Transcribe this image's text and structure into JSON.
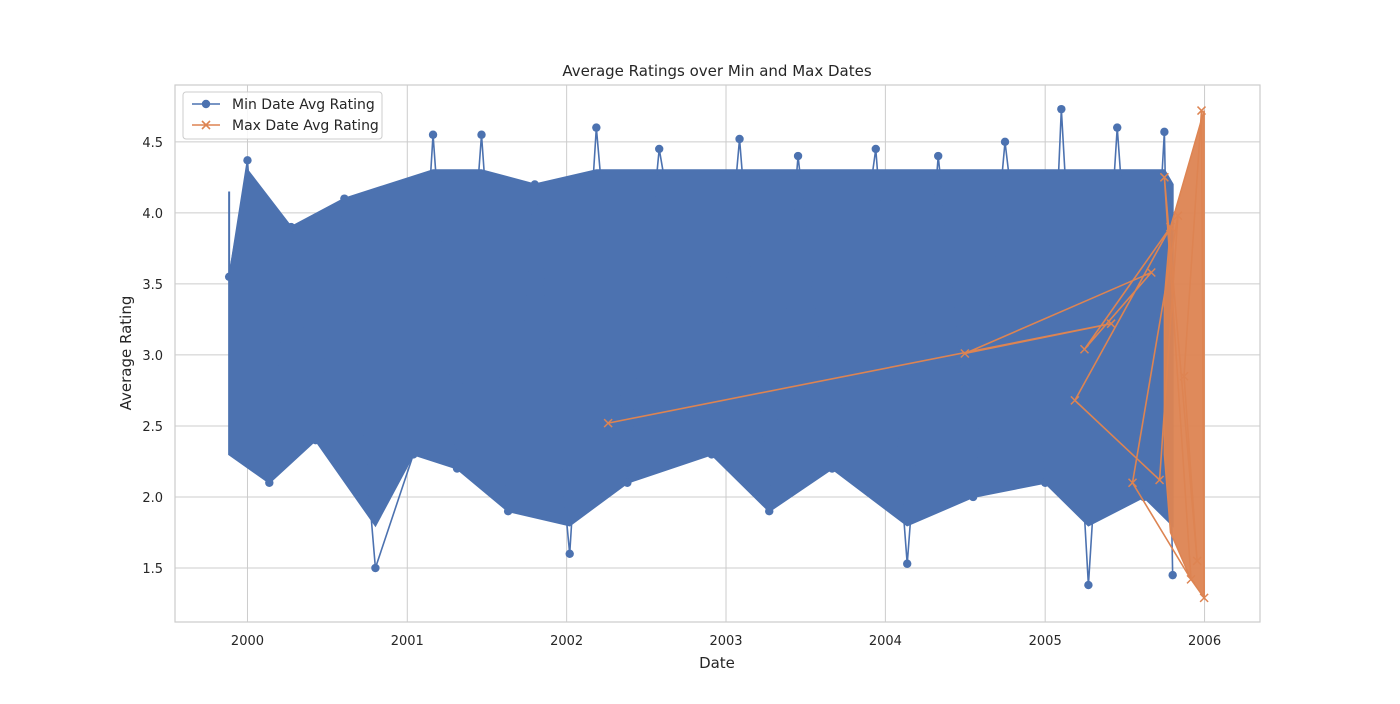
{
  "chart_data": {
    "type": "line",
    "title": "Average Ratings over Min and Max Dates",
    "xlabel": "Date",
    "ylabel": "Average Rating",
    "x_type": "date",
    "xlim": [
      "1999-07-19",
      "2006-05-08"
    ],
    "ylim": [
      1.12,
      4.9
    ],
    "x_ticks": [
      "2000-01-01",
      "2001-01-01",
      "2002-01-01",
      "2003-01-01",
      "2004-01-01",
      "2005-01-01",
      "2006-01-01"
    ],
    "x_tick_labels": [
      "2000",
      "2001",
      "2002",
      "2003",
      "2004",
      "2005",
      "2006"
    ],
    "y_ticks": [
      1.5,
      2.0,
      2.5,
      3.0,
      3.5,
      4.0,
      4.5
    ],
    "y_tick_labels": [
      "1.5",
      "2.0",
      "2.5",
      "3.0",
      "3.5",
      "4.0",
      "4.5"
    ],
    "grid": true,
    "legend": "top-left",
    "series": [
      {
        "name": "Min Date Avg Rating",
        "color": "#4c72b0",
        "marker": "circle",
        "x": [
          "1999-11-20",
          "2000-01-01",
          "2000-02-20",
          "2000-04-10",
          "2000-06-05",
          "2000-08-10",
          "2000-10-20",
          "2001-01-15",
          "2001-03-01",
          "2001-04-25",
          "2001-06-20",
          "2001-08-20",
          "2001-10-20",
          "2002-01-08",
          "2002-03-10",
          "2002-05-20",
          "2002-08-01",
          "2002-11-29",
          "2003-02-01",
          "2003-04-10",
          "2003-06-15",
          "2003-09-01",
          "2003-12-10",
          "2004-02-20",
          "2004-05-01",
          "2004-07-20",
          "2004-10-01",
          "2005-01-01",
          "2005-02-07",
          "2005-04-10",
          "2005-06-15",
          "2005-08-15",
          "2005-10-01",
          "2005-10-20"
        ],
        "y": [
          3.55,
          4.37,
          2.1,
          3.9,
          2.4,
          4.1,
          1.5,
          2.3,
          4.55,
          2.2,
          4.55,
          1.9,
          4.2,
          1.6,
          4.6,
          2.1,
          4.45,
          2.3,
          4.52,
          1.9,
          4.4,
          2.2,
          4.45,
          1.53,
          4.4,
          2.0,
          4.5,
          2.1,
          4.73,
          1.38,
          4.6,
          2.0,
          4.57,
          1.45
        ]
      },
      {
        "name": "Max Date Avg Rating",
        "color": "#dd8452",
        "marker": "x",
        "x": [
          "2002-04-06",
          "2005-06-01",
          "2004-07-01",
          "2005-09-01",
          "2005-04-01",
          "2005-10-15",
          "2005-03-10",
          "2005-09-20",
          "2005-11-01",
          "2005-07-20",
          "2005-12-01",
          "2005-10-01",
          "2005-12-15",
          "2005-11-15",
          "2005-12-25",
          "2005-12-31"
        ],
        "y": [
          2.52,
          3.22,
          3.01,
          3.58,
          3.04,
          3.9,
          2.68,
          2.12,
          3.98,
          2.1,
          1.42,
          4.25,
          1.55,
          2.85,
          4.72,
          1.29
        ]
      }
    ]
  }
}
